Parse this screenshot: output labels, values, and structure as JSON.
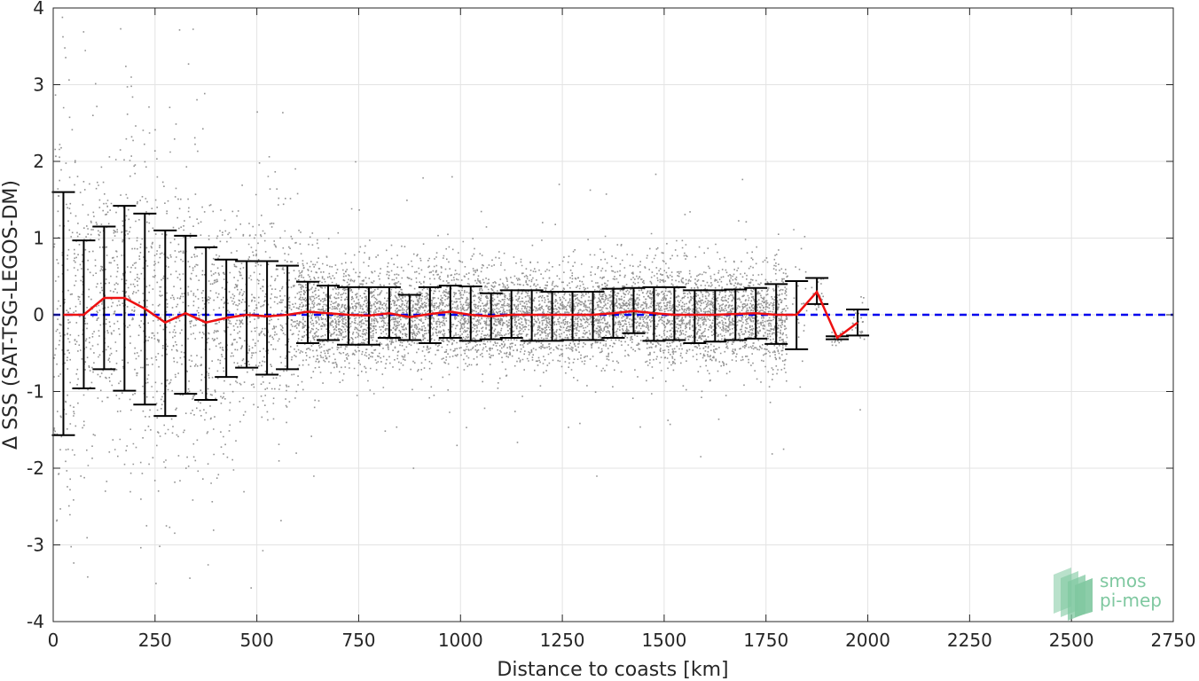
{
  "chart_data": {
    "type": "scatter",
    "title": "",
    "xlabel": "Distance to coasts [km]",
    "ylabel": "Δ SSS (SAT-TSG-LEGOS-DM)",
    "xlim": [
      0,
      2750
    ],
    "ylim": [
      -4,
      4
    ],
    "grid": true,
    "x_ticks": [
      0,
      250,
      500,
      750,
      1000,
      1250,
      1500,
      1750,
      2000,
      2250,
      2500,
      2750
    ],
    "y_ticks": [
      -4,
      -3,
      -2,
      -1,
      0,
      1,
      2,
      3,
      4
    ],
    "x_tick_labels": [
      "0",
      "250",
      "500",
      "750",
      "1000",
      "1250",
      "1500",
      "1750",
      "2000",
      "2250",
      "2500",
      "2750"
    ],
    "y_tick_labels": [
      "-4",
      "-3",
      "-2",
      "-1",
      "0",
      "1",
      "2",
      "3",
      "4"
    ],
    "reference_line": {
      "y": 0,
      "color": "#0000ee",
      "style": "dashed"
    },
    "scatter_color": "#7f7f7f",
    "series": [
      {
        "kind": "mean_with_std",
        "color": "#ee1111",
        "errorbar_color": "#000000",
        "x": [
          25,
          75,
          125,
          175,
          225,
          275,
          325,
          375,
          425,
          475,
          525,
          575,
          625,
          675,
          725,
          775,
          825,
          875,
          925,
          975,
          1025,
          1075,
          1125,
          1175,
          1225,
          1275,
          1325,
          1375,
          1425,
          1475,
          1525,
          1575,
          1625,
          1675,
          1725,
          1775,
          1825,
          1875,
          1925,
          1975
        ],
        "mean": [
          0.0,
          0.0,
          0.22,
          0.22,
          0.08,
          -0.1,
          0.02,
          -0.1,
          -0.04,
          0.0,
          -0.02,
          0.0,
          0.04,
          0.02,
          0.0,
          -0.01,
          0.02,
          -0.03,
          0.01,
          0.04,
          0.0,
          -0.02,
          0.0,
          0.0,
          0.0,
          0.0,
          0.0,
          0.02,
          0.05,
          0.02,
          0.0,
          0.0,
          0.0,
          0.01,
          0.02,
          0.0,
          0.0,
          0.3,
          -0.3,
          -0.1
        ],
        "upper": [
          1.6,
          0.97,
          1.15,
          1.42,
          1.32,
          1.1,
          1.03,
          0.88,
          0.72,
          0.7,
          0.7,
          0.64,
          0.43,
          0.38,
          0.36,
          0.36,
          0.36,
          0.26,
          0.36,
          0.38,
          0.37,
          0.28,
          0.32,
          0.32,
          0.3,
          0.3,
          0.3,
          0.34,
          0.35,
          0.36,
          0.36,
          0.32,
          0.32,
          0.33,
          0.35,
          0.4,
          0.44,
          0.48,
          -0.28,
          0.07
        ],
        "lower": [
          -1.57,
          -0.96,
          -0.71,
          -0.99,
          -1.17,
          -1.32,
          -1.03,
          -1.11,
          -0.81,
          -0.69,
          -0.78,
          -0.71,
          -0.37,
          -0.33,
          -0.39,
          -0.39,
          -0.3,
          -0.33,
          -0.37,
          -0.3,
          -0.34,
          -0.32,
          -0.3,
          -0.34,
          -0.34,
          -0.33,
          -0.33,
          -0.3,
          -0.24,
          -0.34,
          -0.33,
          -0.37,
          -0.35,
          -0.33,
          -0.31,
          -0.38,
          -0.45,
          0.14,
          -0.32,
          -0.27
        ]
      }
    ]
  },
  "logo": {
    "line1": "smos",
    "line2": "pi-mep",
    "color": "#7fc8a0"
  }
}
